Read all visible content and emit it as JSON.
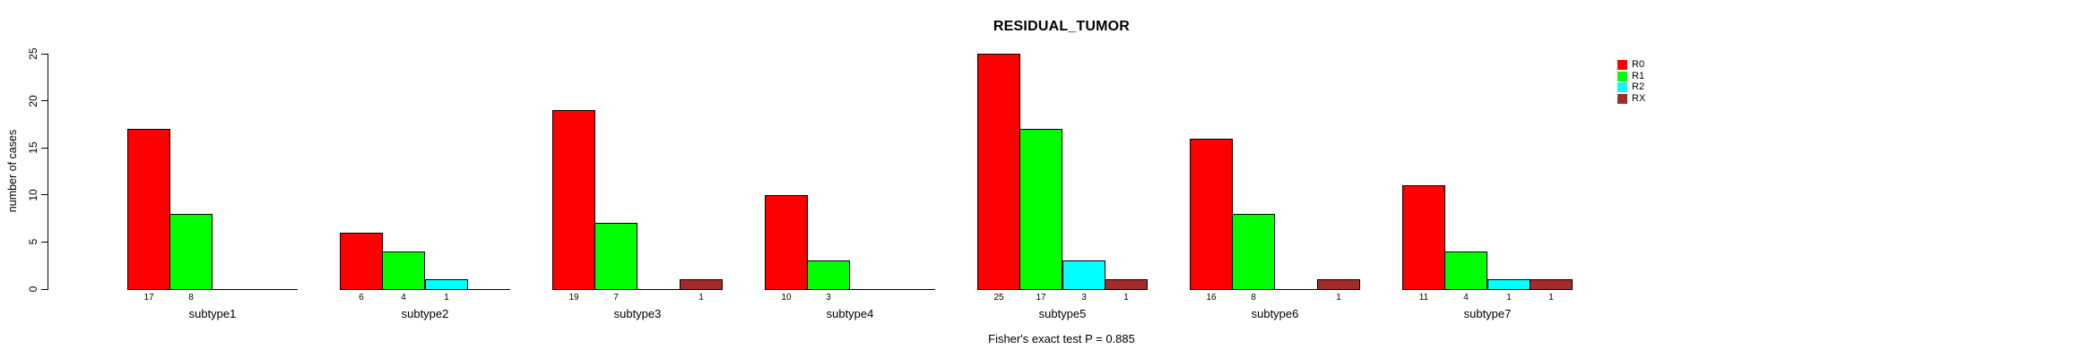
{
  "title": "RESIDUAL_TUMOR",
  "footer": "Fisher's exact test P = 0.885",
  "y_axis": {
    "label": "number of cases",
    "ticks": [
      "0",
      "5",
      "10",
      "15",
      "20",
      "25"
    ]
  },
  "legend": {
    "entries": [
      {
        "label": "R0",
        "color": "#FF0000"
      },
      {
        "label": "R1",
        "color": "#00FF00"
      },
      {
        "label": "R2",
        "color": "#00FFFF"
      },
      {
        "label": "RX",
        "color": "#A52A2A"
      }
    ]
  },
  "chart_data": {
    "type": "bar",
    "title": "RESIDUAL_TUMOR",
    "xlabel": "",
    "ylabel": "number of cases",
    "categories": [
      "subtype1",
      "subtype2",
      "subtype3",
      "subtype4",
      "subtype5",
      "subtype6",
      "subtype7"
    ],
    "series": [
      {
        "name": "R0",
        "color": "#FF0000",
        "values": [
          17,
          6,
          19,
          10,
          25,
          16,
          11
        ]
      },
      {
        "name": "R1",
        "color": "#00FF00",
        "values": [
          8,
          4,
          7,
          3,
          17,
          8,
          4
        ]
      },
      {
        "name": "R2",
        "color": "#00FFFF",
        "values": [
          0,
          1,
          0,
          0,
          3,
          0,
          1
        ]
      },
      {
        "name": "RX",
        "color": "#A52A2A",
        "values": [
          0,
          0,
          1,
          0,
          1,
          1,
          1
        ]
      }
    ],
    "bar_value_labels": "shown under each nonzero bar",
    "yticks": [
      0,
      5,
      10,
      15,
      20,
      25
    ],
    "ylim": [
      0,
      25
    ],
    "grid": false,
    "legend_position": "right",
    "annotation": "Fisher's exact test P = 0.885"
  }
}
